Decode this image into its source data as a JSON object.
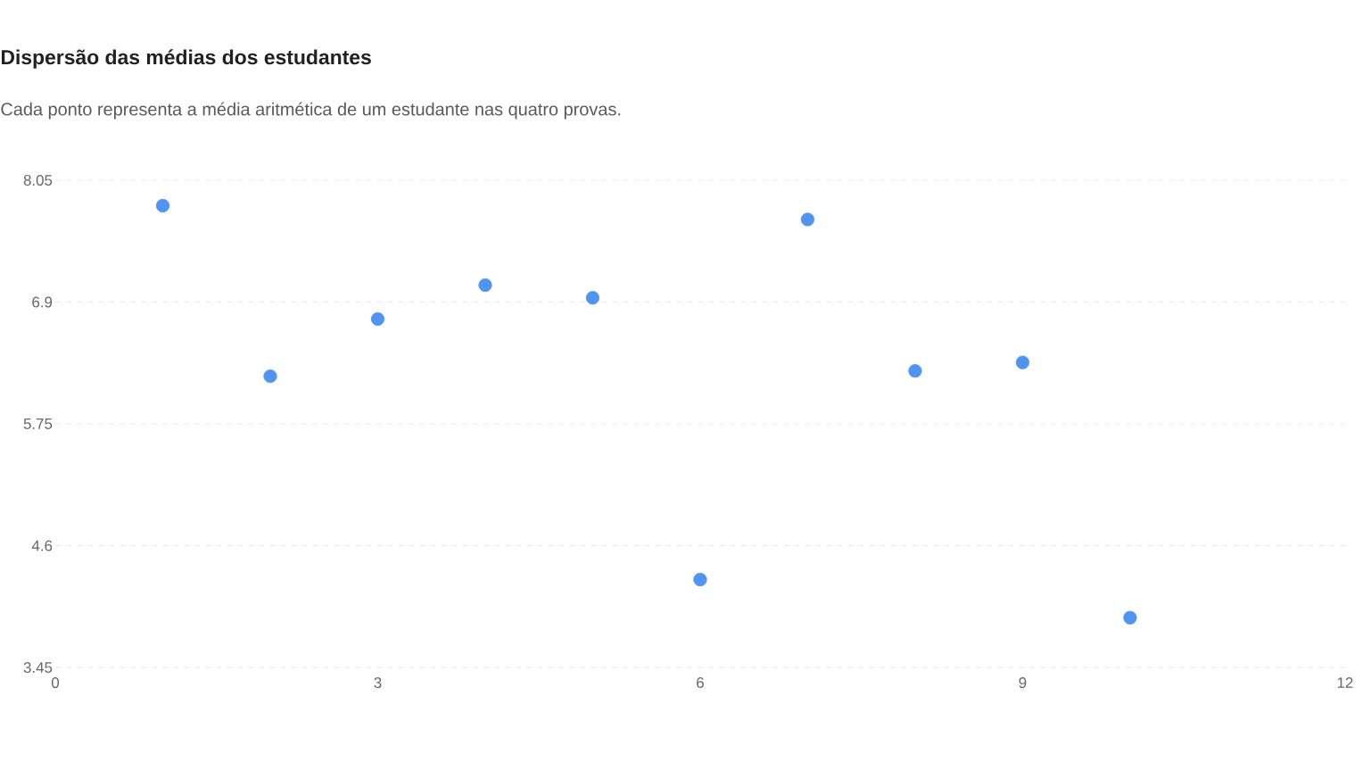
{
  "chart_data": {
    "type": "scatter",
    "title": "Dispersão das médias dos estudantes",
    "subtitle": "Cada ponto representa a média aritmética de um estudante nas quatro provas.",
    "x": [
      1,
      2,
      3,
      4,
      5,
      6,
      7,
      8,
      9,
      10
    ],
    "series": [
      {
        "color": "#4e94f0",
        "values": [
          7.81,
          6.2,
          6.74,
          7.06,
          6.94,
          4.28,
          7.68,
          6.25,
          6.33,
          3.92
        ]
      }
    ],
    "xlim": [
      0,
      12
    ],
    "xticks": [
      0,
      3,
      6,
      9,
      12
    ],
    "ylim": [
      3.45,
      8.05
    ],
    "yticks": [
      3.45,
      4.6,
      5.75,
      6.9,
      8.05
    ],
    "grid": "y",
    "marker": "circle"
  }
}
